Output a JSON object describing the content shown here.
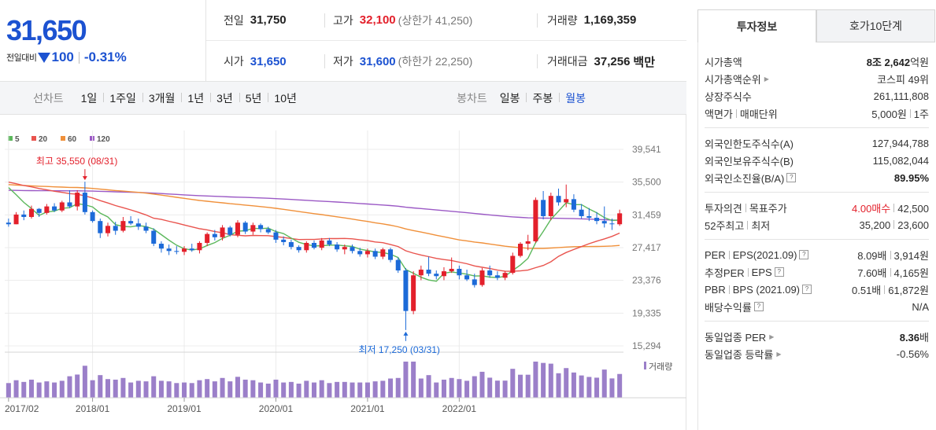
{
  "quote": {
    "price": "31,650",
    "change_label": "전일대비",
    "change_value": "100",
    "change_rate": "-0.31%"
  },
  "stats": {
    "prev_close_label": "전일",
    "prev_close": "31,750",
    "high_label": "고가",
    "high": "32,100",
    "upper_limit": "(상한가 41,250)",
    "volume_label": "거래량",
    "volume": "1,169,359",
    "open_label": "시가",
    "open": "31,650",
    "low_label": "저가",
    "low": "31,600",
    "lower_limit": "(하한가 22,250)",
    "value_label": "거래대금",
    "value": "37,256",
    "value_unit": "백만"
  },
  "toolbar": {
    "line_label": "선차트",
    "line_periods": [
      "1일",
      "1주일",
      "3개월",
      "1년",
      "3년",
      "5년",
      "10년"
    ],
    "candle_label": "봉차트",
    "candle_periods": [
      "일봉",
      "주봉",
      "월봉"
    ],
    "active_candle": "월봉"
  },
  "chart_data": {
    "type": "candlestick",
    "legend": [
      {
        "name": "5",
        "color": "#5cb85c"
      },
      {
        "name": "20",
        "color": "#e9544e"
      },
      {
        "name": "60",
        "color": "#f0903a"
      },
      {
        "name": "120",
        "color": "#9b59c5"
      }
    ],
    "y_ticks": [
      "39,541",
      "35,500",
      "31,459",
      "27,417",
      "23,376",
      "19,335",
      "15,294"
    ],
    "ylim": [
      15294,
      39541
    ],
    "x_ticks": [
      "2017/02",
      "2018/01",
      "2019/01",
      "2020/01",
      "2021/01",
      "2022/01"
    ],
    "volume_label": "거래량",
    "annotations": {
      "high": "최고 35,550 (08/31)",
      "low": "최저 17,250 (03/31)"
    },
    "colors": {
      "up": "#e3202b",
      "down": "#1c6ad8",
      "volume": "#9b7fc9"
    },
    "candles": [
      [
        30500,
        31000,
        30000,
        30300
      ],
      [
        30300,
        31800,
        30300,
        31500
      ],
      [
        31500,
        32000,
        30800,
        31200
      ],
      [
        31200,
        32600,
        31000,
        32200
      ],
      [
        32200,
        32300,
        31200,
        31700
      ],
      [
        31700,
        32800,
        31500,
        32500
      ],
      [
        32500,
        32900,
        31800,
        32000
      ],
      [
        32000,
        33200,
        31800,
        33000
      ],
      [
        33000,
        34500,
        32300,
        32500
      ],
      [
        32500,
        34500,
        32000,
        34200
      ],
      [
        34200,
        35550,
        31500,
        31800
      ],
      [
        31800,
        32000,
        30500,
        30700
      ],
      [
        30700,
        31000,
        28600,
        29200
      ],
      [
        29200,
        30500,
        28800,
        30100
      ],
      [
        30100,
        30600,
        29000,
        29500
      ],
      [
        29500,
        31200,
        29300,
        30700
      ],
      [
        30700,
        31300,
        30200,
        30400
      ],
      [
        30400,
        31000,
        29600,
        30000
      ],
      [
        30000,
        30500,
        29200,
        29500
      ],
      [
        29500,
        29800,
        27600,
        27900
      ],
      [
        27900,
        28200,
        26800,
        27300
      ],
      [
        27300,
        27800,
        26500,
        27000
      ],
      [
        27000,
        27600,
        26600,
        26900
      ],
      [
        26900,
        27600,
        26500,
        27300
      ],
      [
        27300,
        27900,
        26900,
        27100
      ],
      [
        27100,
        28200,
        26700,
        28000
      ],
      [
        28000,
        29300,
        27600,
        29100
      ],
      [
        29100,
        29600,
        28300,
        28700
      ],
      [
        28700,
        30200,
        28300,
        29900
      ],
      [
        29900,
        30100,
        28800,
        29000
      ],
      [
        29000,
        30800,
        28700,
        30500
      ],
      [
        30500,
        30700,
        29100,
        29400
      ],
      [
        29400,
        30500,
        29000,
        30200
      ],
      [
        30200,
        30400,
        29300,
        29700
      ],
      [
        29700,
        30000,
        29100,
        29300
      ],
      [
        29300,
        29600,
        28000,
        28400
      ],
      [
        28400,
        28800,
        27700,
        28100
      ],
      [
        28100,
        28400,
        27200,
        27500
      ],
      [
        27500,
        27700,
        26800,
        27100
      ],
      [
        27100,
        28200,
        26800,
        28000
      ],
      [
        28000,
        28300,
        27200,
        27400
      ],
      [
        27400,
        28600,
        27100,
        28300
      ],
      [
        28300,
        28600,
        27600,
        27800
      ],
      [
        27800,
        28100,
        26900,
        27200
      ],
      [
        27200,
        27800,
        26600,
        27500
      ],
      [
        27500,
        27800,
        26700,
        27000
      ],
      [
        27000,
        27400,
        26300,
        26600
      ],
      [
        26600,
        27300,
        26200,
        27000
      ],
      [
        27000,
        27300,
        26000,
        26300
      ],
      [
        26300,
        27400,
        26000,
        27200
      ],
      [
        27200,
        27400,
        25600,
        25900
      ],
      [
        25900,
        26200,
        24300,
        24600
      ],
      [
        24600,
        24900,
        17250,
        19600
      ],
      [
        19600,
        24500,
        19200,
        24000
      ],
      [
        24000,
        25200,
        23400,
        24700
      ],
      [
        24700,
        26300,
        23900,
        24200
      ],
      [
        24200,
        24600,
        23500,
        23900
      ],
      [
        23900,
        25000,
        23400,
        24500
      ],
      [
        24500,
        26200,
        24300,
        24800
      ],
      [
        24800,
        25200,
        23500,
        24000
      ],
      [
        24000,
        24700,
        23300,
        23500
      ],
      [
        23500,
        24200,
        22500,
        22800
      ],
      [
        22800,
        24900,
        22600,
        24600
      ],
      [
        24600,
        25200,
        23700,
        24000
      ],
      [
        24000,
        24500,
        23400,
        23700
      ],
      [
        23700,
        24500,
        23400,
        24300
      ],
      [
        24300,
        26800,
        24100,
        26400
      ],
      [
        26400,
        28100,
        26200,
        27900
      ],
      [
        27900,
        29000,
        27100,
        28200
      ],
      [
        28200,
        33600,
        28000,
        33300
      ],
      [
        33300,
        34400,
        30900,
        31300
      ],
      [
        31300,
        34200,
        30800,
        33800
      ],
      [
        33800,
        34700,
        32600,
        33000
      ],
      [
        33000,
        35200,
        32400,
        33400
      ],
      [
        33400,
        34000,
        31800,
        32100
      ],
      [
        32100,
        32800,
        31000,
        31300
      ],
      [
        31300,
        32300,
        30700,
        31100
      ],
      [
        31100,
        31800,
        30300,
        30700
      ],
      [
        30700,
        32500,
        29900,
        30400
      ],
      [
        30400,
        31000,
        29600,
        30300
      ],
      [
        30300,
        32100,
        30100,
        31650
      ]
    ]
  },
  "panel": {
    "tabs": [
      "투자정보",
      "호가10단계"
    ],
    "market_cap_label": "시가총액",
    "market_cap_a": "8조",
    "market_cap_b": "2,642",
    "market_cap_unit": "억원",
    "market_rank_label": "시가총액순위",
    "market_rank": "코스피 49위",
    "shares_label": "상장주식수",
    "shares": "261,111,808",
    "par_label": "액면가",
    "unit_label": "매매단위",
    "par": "5,000원",
    "unit": "1주",
    "foreign_limit_label": "외국인한도주식수(A)",
    "foreign_limit": "127,944,788",
    "foreign_hold_label": "외국인보유주식수(B)",
    "foreign_hold": "115,082,044",
    "foreign_ratio_label": "외국인소진율(B/A)",
    "foreign_ratio": "89.95%",
    "opinion_label": "투자의견",
    "target_label": "목표주가",
    "opinion": "4.00매수",
    "target": "42,500",
    "w52_label": "52주최고",
    "w52_low_label": "최저",
    "w52_high": "35,200",
    "w52_low": "23,600",
    "per_label": "PER",
    "eps_label": "EPS(2021.09)",
    "per": "8.09배",
    "eps": "3,914원",
    "fper_label": "추정PER",
    "feps_label": "EPS",
    "fper": "7.60배",
    "feps": "4,165원",
    "pbr_label": "PBR",
    "bps_label": "BPS (2021.09)",
    "pbr": "0.51배",
    "bps": "61,872원",
    "div_label": "배당수익률",
    "div": "N/A",
    "sector_per_label": "동일업종 PER",
    "sector_per": "8.36",
    "sector_per_unit": "배",
    "sector_rate_label": "동일업종 등락률",
    "sector_rate": "-0.56%"
  }
}
